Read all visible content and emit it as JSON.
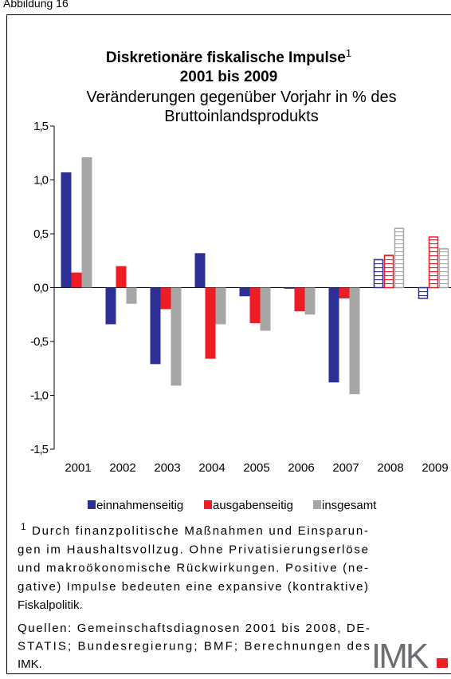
{
  "figure_label": "Abbildung 16",
  "chart_data": {
    "type": "bar",
    "title": "Diskretionäre fiskalische Impulse",
    "title_footnote_marker": "1",
    "title_line2": "2001 bis 2009",
    "subtitle_lines": [
      "Veränderungen gegenüber Vorjahr in % des",
      "Bruttoinlandsprodukts"
    ],
    "categories": [
      "2001",
      "2002",
      "2003",
      "2004",
      "2005",
      "2006",
      "2007",
      "2008",
      "2009"
    ],
    "bar_styles": [
      "solid",
      "solid",
      "solid",
      "solid",
      "solid",
      "solid",
      "solid",
      "hatched",
      "hatched"
    ],
    "series": [
      {
        "name": "einnahmenseitig",
        "color": "#2b2f96",
        "values": [
          1.07,
          -0.34,
          -0.71,
          0.32,
          -0.08,
          -0.01,
          -0.88,
          0.26,
          -0.1
        ]
      },
      {
        "name": "ausgabenseitig",
        "color": "#ee1c25",
        "values": [
          0.14,
          0.2,
          -0.2,
          -0.66,
          -0.33,
          -0.22,
          -0.1,
          0.3,
          0.47
        ]
      },
      {
        "name": "insgesamt",
        "color": "#a6a6a6",
        "values": [
          1.21,
          -0.15,
          -0.91,
          -0.34,
          -0.4,
          -0.25,
          -0.99,
          0.55,
          0.36
        ]
      }
    ],
    "ylim": [
      -1.5,
      1.5
    ],
    "yticks": [
      {
        "value": 1.5,
        "label": "1,5"
      },
      {
        "value": 1.0,
        "label": "1,0"
      },
      {
        "value": 0.5,
        "label": "0,5"
      },
      {
        "value": 0,
        "label": "0,0"
      },
      {
        "value": -0.5,
        "label": "-0,5"
      },
      {
        "value": -1.0,
        "label": "-1,0"
      },
      {
        "value": -1.5,
        "label": "-1,5"
      }
    ],
    "legend": "bottom"
  },
  "footnote": {
    "marker": "1",
    "lines": [
      "Durch finanzpolitische Maßnahmen und Einsparun-",
      "gen im Haushaltsvollzug. Ohne Privatisierungserlöse",
      "und makroökonomische Rückwirkungen. Positive (ne-",
      "gative) Impulse bedeuten eine expansive (kontraktive)",
      "Fiskalpolitik."
    ]
  },
  "sources": {
    "lines": [
      "Quellen: Gemeinschaftsdiagnosen 2001 bis 2008, DE-",
      "STATIS; Bundesregierung; BMF; Berechnungen des",
      "IMK."
    ]
  },
  "logo": "IMK"
}
